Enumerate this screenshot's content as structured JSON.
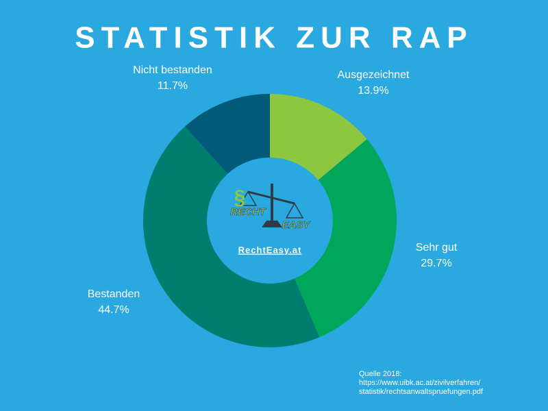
{
  "chart_data": {
    "type": "pie",
    "title": "STATISTIK ZUR RAP",
    "categories": [
      "Ausgezeichnet",
      "Sehr gut",
      "Bestanden",
      "Nicht bestanden"
    ],
    "values": [
      13.9,
      29.7,
      44.7,
      11.7
    ],
    "value_labels": [
      "13.9%",
      "29.7%",
      "44.7%",
      "11.7%"
    ],
    "colors": [
      "#8dc63f",
      "#00a65a",
      "#007d6e",
      "#005a78"
    ],
    "donut": true,
    "logo": {
      "symbol": "§",
      "word1": "RECHT",
      "word2": "EASY",
      "site": "RechtEasy.at"
    },
    "source": [
      "Quelle 2018:",
      "https://www.uibk.ac.at/zivilverfahren/",
      "statistik/rechtsanwaltspruefungen.pdf"
    ]
  }
}
